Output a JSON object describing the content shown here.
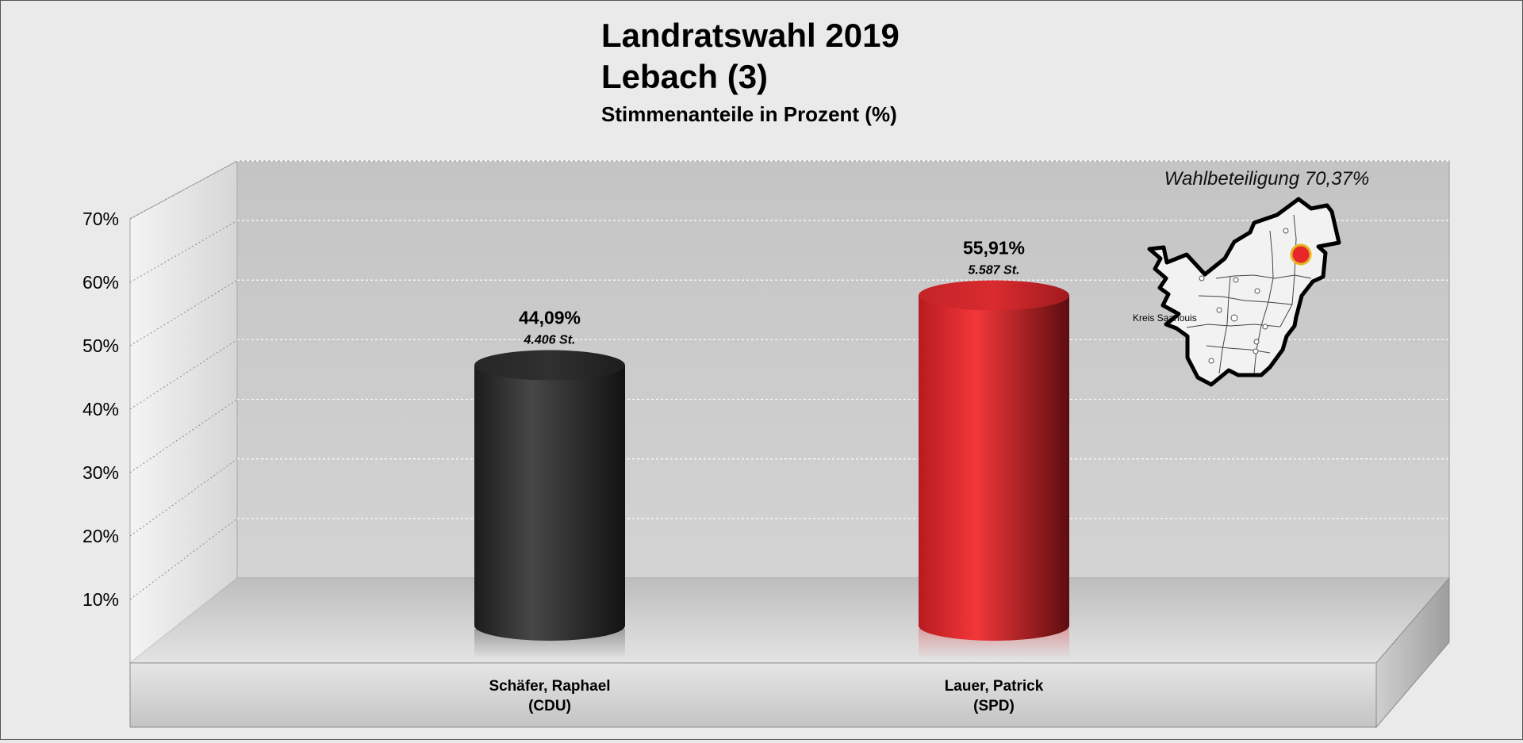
{
  "chart_data": {
    "type": "bar",
    "title": "Landratswahl 2019",
    "subtitle": "Lebach (3)",
    "ylabel": "Stimmenanteile in Prozent (%)",
    "ylim": [
      0,
      70
    ],
    "yticks": [
      {
        "value": 10,
        "label": "10%"
      },
      {
        "value": 20,
        "label": "20%"
      },
      {
        "value": 30,
        "label": "30%"
      },
      {
        "value": 40,
        "label": "40%"
      },
      {
        "value": 50,
        "label": "50%"
      },
      {
        "value": 60,
        "label": "60%"
      },
      {
        "value": 70,
        "label": "70%"
      }
    ],
    "grid": true,
    "bars": [
      {
        "name_line1": "Schäfer, Raphael",
        "name_line2": "(CDU)",
        "value": 44.09,
        "value_label": "44,09%",
        "votes_label": "4.406 St.",
        "color": "#3a3a3a"
      },
      {
        "name_line1": "Lauer, Patrick",
        "name_line2": "(SPD)",
        "value": 55.91,
        "value_label": "55,91%",
        "votes_label": "5.587 St.",
        "color": "#e8272c"
      }
    ],
    "annotation": "Wahlbeteiligung 70,37%",
    "map_label": "Kreis Saarlouis",
    "map_marker_color": "#e8272c"
  }
}
